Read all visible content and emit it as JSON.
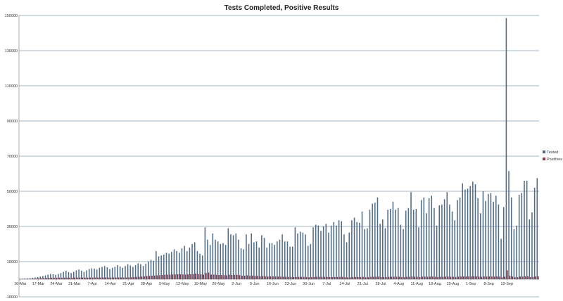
{
  "chart_data": {
    "type": "bar",
    "title": "Tests Completed, Positive Results",
    "xlabel": "",
    "ylabel": "",
    "ylim": [
      -10000,
      150000
    ],
    "yticks": [
      -10000,
      10000,
      30000,
      50000,
      70000,
      90000,
      110000,
      130000,
      150000
    ],
    "x_tick_labels": [
      "10-Mar",
      "17-Mar",
      "24-Mar",
      "31-Mar",
      "7-Apr",
      "14-Apr",
      "21-Apr",
      "28-Apr",
      "5-May",
      "12-May",
      "19-May",
      "26-May",
      "2-Jun",
      "9-Jun",
      "16-Jun",
      "23-Jun",
      "30-Jun",
      "7-Jul",
      "14-Jul",
      "21-Jul",
      "28-Jul",
      "4-Aug",
      "11-Aug",
      "18-Aug",
      "25-Aug",
      "1-Sep",
      "8-Sep",
      "15-Sep"
    ],
    "grid": true,
    "legend_position": "right",
    "colors": {
      "tested": "#4f6b85",
      "positives": "#8b3a4a",
      "grid": "#4a6a8a"
    },
    "series": [
      {
        "name": "Tested",
        "values": [
          200,
          300,
          400,
          500,
          600,
          800,
          1000,
          1200,
          1500,
          1800,
          2200,
          2600,
          3000,
          2800,
          2500,
          3000,
          3500,
          4200,
          4800,
          4000,
          3500,
          4200,
          5000,
          5500,
          4800,
          4200,
          5000,
          5800,
          6200,
          6000,
          5500,
          6500,
          7000,
          7500,
          6800,
          5800,
          6500,
          7000,
          8000,
          7200,
          6500,
          7500,
          8500,
          7800,
          7000,
          8000,
          9000,
          8500,
          7500,
          8800,
          10000,
          11000,
          10500,
          16000,
          13000,
          13500,
          14000,
          15000,
          14500,
          15500,
          17000,
          16000,
          15000,
          17500,
          19000,
          16000,
          18000,
          20000,
          21000,
          16000,
          14500,
          13500,
          29500,
          22500,
          19500,
          26000,
          22500,
          21500,
          20000,
          20500,
          19500,
          29000,
          25500,
          25000,
          26000,
          22500,
          17500,
          17000,
          25500,
          20000,
          26000,
          21000,
          21500,
          18000,
          25000,
          23500,
          18000,
          20500,
          20500,
          19500,
          21500,
          22500,
          25500,
          21500,
          21500,
          18500,
          18500,
          29500,
          26000,
          27000,
          26500,
          25500,
          19000,
          20000,
          29500,
          31000,
          30500,
          27500,
          30000,
          31500,
          26500,
          30500,
          32500,
          30500,
          33500,
          33000,
          25500,
          21000,
          26500,
          33500,
          35000,
          32500,
          32000,
          38500,
          28500,
          29000,
          39500,
          43000,
          43500,
          46500,
          31500,
          34000,
          29000,
          39500,
          40000,
          44000,
          39500,
          40500,
          31000,
          28500,
          39000,
          40500,
          49500,
          39500,
          40000,
          29500,
          45000,
          46500,
          37500,
          46000,
          47500,
          40500,
          30500,
          42000,
          42500,
          45500,
          49500,
          42500,
          38500,
          33500,
          45000,
          46500,
          54500,
          51000,
          51500,
          53000,
          55500,
          54000,
          46000,
          37500,
          50000,
          44500,
          48500,
          49000,
          44000,
          47500,
          42500,
          23000,
          41000,
          148500,
          61500,
          46500,
          28500,
          30500,
          48000,
          49000,
          56000,
          56000,
          34000,
          38000,
          52000,
          57500
        ],
        "color": "#4f6b85"
      },
      {
        "name": "Positives",
        "values": [
          30,
          50,
          80,
          120,
          180,
          260,
          350,
          430,
          520,
          620,
          700,
          780,
          820,
          840,
          850,
          860,
          880,
          900,
          920,
          900,
          880,
          900,
          920,
          940,
          920,
          900,
          900,
          920,
          950,
          940,
          920,
          950,
          980,
          1000,
          950,
          920,
          950,
          980,
          1000,
          980,
          950,
          980,
          1000,
          1100,
          1200,
          1300,
          1400,
          1500,
          1600,
          1800,
          1900,
          2000,
          2100,
          2200,
          2300,
          2400,
          2500,
          2600,
          2600,
          2700,
          2700,
          2800,
          2800,
          2700,
          2600,
          2700,
          2800,
          3000,
          3100,
          2900,
          2800,
          2600,
          3500,
          3800,
          2600,
          2600,
          2500,
          2400,
          2400,
          2300,
          2200,
          2600,
          2400,
          2400,
          2500,
          2300,
          2000,
          2000,
          2200,
          2000,
          2100,
          1900,
          1900,
          1700,
          1800,
          1700,
          1500,
          1600,
          1600,
          1500,
          1500,
          1500,
          1400,
          1300,
          1300,
          1200,
          1200,
          1300,
          1300,
          1300,
          1300,
          1250,
          1100,
          1200,
          1300,
          1400,
          1400,
          1300,
          1300,
          1350,
          1200,
          1250,
          1300,
          1250,
          1300,
          1300,
          1100,
          1000,
          1100,
          1250,
          1300,
          1250,
          1200,
          1350,
          1100,
          1150,
          1350,
          1400,
          1400,
          1450,
          1200,
          1250,
          1150,
          1350,
          1400,
          1450,
          1400,
          1400,
          1200,
          1150,
          1350,
          1400,
          1500,
          1400,
          1400,
          1200,
          1450,
          1500,
          1350,
          1450,
          1500,
          1400,
          1200,
          1400,
          1400,
          1450,
          1500,
          1400,
          1350,
          1250,
          1450,
          1500,
          1600,
          1550,
          1550,
          1600,
          1650,
          1600,
          1500,
          1350,
          1550,
          1500,
          1550,
          1550,
          1500,
          1550,
          1450,
          1100,
          1450,
          5000,
          1900,
          1500,
          1100,
          1150,
          1500,
          1500,
          1600,
          1600,
          1200,
          1300,
          1550,
          1650
        ],
        "color": "#8b3a4a"
      }
    ]
  }
}
